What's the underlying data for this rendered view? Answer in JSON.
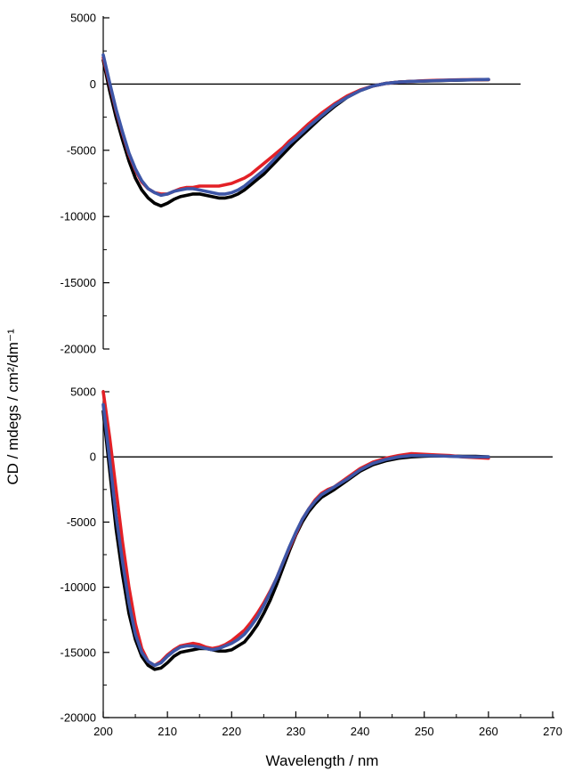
{
  "figure": {
    "ylabel": "CD / mdegs / cm²/dm⁻¹",
    "xlabel": "Wavelength / nm"
  },
  "chart_data": [
    {
      "type": "line",
      "panel": "top",
      "title": "",
      "xlabel": "",
      "ylabel": "",
      "xlim": [
        200,
        270
      ],
      "ylim": [
        -20000,
        5000
      ],
      "yticks": [
        5000,
        0,
        -5000,
        -10000,
        -15000,
        -20000
      ],
      "ytick_labels": [
        "5000",
        "0",
        "-5000",
        "-10000",
        "-15000",
        "-20000"
      ],
      "zero_line": [
        200,
        265
      ],
      "grid": false,
      "series": [
        {
          "color": "#000000",
          "x": [
            200,
            201,
            202,
            203,
            204,
            205,
            206,
            207,
            208,
            209,
            210,
            211,
            212,
            213,
            214,
            215,
            216,
            217,
            218,
            219,
            220,
            221,
            222,
            223,
            224,
            225,
            226,
            227,
            228,
            229,
            230,
            232,
            234,
            236,
            238,
            240,
            242,
            244,
            246,
            248,
            250,
            252,
            254,
            256,
            258,
            260
          ],
          "y": [
            1800,
            -500,
            -2500,
            -4200,
            -5800,
            -7100,
            -8000,
            -8600,
            -9000,
            -9200,
            -9000,
            -8700,
            -8500,
            -8400,
            -8300,
            -8300,
            -8400,
            -8500,
            -8600,
            -8600,
            -8500,
            -8300,
            -8000,
            -7600,
            -7200,
            -6800,
            -6300,
            -5800,
            -5300,
            -4800,
            -4300,
            -3400,
            -2500,
            -1700,
            -1000,
            -500,
            -150,
            50,
            150,
            200,
            220,
            250,
            280,
            300,
            320,
            330
          ]
        },
        {
          "color": "#e32026",
          "x": [
            200,
            201,
            202,
            203,
            204,
            205,
            206,
            207,
            208,
            209,
            210,
            211,
            212,
            213,
            214,
            215,
            216,
            217,
            218,
            219,
            220,
            221,
            222,
            223,
            224,
            225,
            226,
            227,
            228,
            229,
            230,
            232,
            234,
            236,
            238,
            240,
            242,
            244,
            246,
            248,
            250,
            252,
            254,
            256,
            258,
            260
          ],
          "y": [
            2000,
            0,
            -2000,
            -3700,
            -5300,
            -6500,
            -7400,
            -7900,
            -8200,
            -8300,
            -8300,
            -8100,
            -7900,
            -7800,
            -7800,
            -7700,
            -7700,
            -7700,
            -7700,
            -7600,
            -7500,
            -7300,
            -7100,
            -6800,
            -6400,
            -6000,
            -5600,
            -5200,
            -4800,
            -4300,
            -3900,
            -3000,
            -2200,
            -1500,
            -900,
            -450,
            -150,
            50,
            150,
            200,
            250,
            280,
            300,
            320,
            330,
            340
          ]
        },
        {
          "color": "#3e56a7",
          "x": [
            200,
            201,
            202,
            203,
            204,
            205,
            206,
            207,
            208,
            209,
            210,
            211,
            212,
            213,
            214,
            215,
            216,
            217,
            218,
            219,
            220,
            221,
            222,
            223,
            224,
            225,
            226,
            227,
            228,
            229,
            230,
            232,
            234,
            236,
            238,
            240,
            242,
            244,
            246,
            248,
            250,
            252,
            254,
            256,
            258,
            260
          ],
          "y": [
            2200,
            100,
            -1900,
            -3600,
            -5200,
            -6400,
            -7300,
            -7900,
            -8200,
            -8400,
            -8300,
            -8100,
            -8000,
            -7900,
            -7900,
            -8000,
            -8100,
            -8200,
            -8300,
            -8300,
            -8200,
            -8000,
            -7700,
            -7300,
            -6900,
            -6500,
            -6000,
            -5500,
            -5000,
            -4500,
            -4100,
            -3200,
            -2400,
            -1600,
            -1000,
            -500,
            -150,
            50,
            150,
            200,
            230,
            260,
            290,
            310,
            330,
            350
          ]
        }
      ]
    },
    {
      "type": "line",
      "panel": "bottom",
      "title": "",
      "xlabel": "Wavelength / nm",
      "ylabel": "",
      "xlim": [
        200,
        270
      ],
      "ylim": [
        -20000,
        5000
      ],
      "xticks": [
        200,
        210,
        220,
        230,
        240,
        250,
        260,
        270
      ],
      "xtick_labels": [
        "200",
        "210",
        "220",
        "230",
        "240",
        "250",
        "260",
        "270"
      ],
      "yticks": [
        5000,
        0,
        -5000,
        -10000,
        -15000,
        -20000
      ],
      "ytick_labels": [
        "5000",
        "0",
        "-5000",
        "-10000",
        "-15000",
        "-20000"
      ],
      "zero_line": [
        200,
        270
      ],
      "grid": false,
      "series": [
        {
          "color": "#000000",
          "x": [
            200,
            201,
            202,
            203,
            204,
            205,
            206,
            207,
            208,
            209,
            210,
            211,
            212,
            213,
            214,
            215,
            216,
            217,
            218,
            219,
            220,
            221,
            222,
            223,
            224,
            225,
            226,
            227,
            228,
            229,
            230,
            231,
            232,
            233,
            234,
            235,
            236,
            238,
            240,
            242,
            244,
            246,
            248,
            250,
            252,
            254,
            256,
            258,
            260
          ],
          "y": [
            3500,
            -1000,
            -5500,
            -9000,
            -12000,
            -14000,
            -15300,
            -16000,
            -16300,
            -16200,
            -15800,
            -15300,
            -15000,
            -14900,
            -14800,
            -14700,
            -14700,
            -14800,
            -14900,
            -14900,
            -14800,
            -14500,
            -14200,
            -13600,
            -12900,
            -12000,
            -11000,
            -9800,
            -8500,
            -7200,
            -6000,
            -5000,
            -4200,
            -3600,
            -3100,
            -2800,
            -2500,
            -1800,
            -1100,
            -600,
            -300,
            -100,
            0,
            50,
            80,
            60,
            40,
            50,
            0
          ]
        },
        {
          "color": "#e32026",
          "x": [
            200,
            201,
            202,
            203,
            204,
            205,
            206,
            207,
            208,
            209,
            210,
            211,
            212,
            213,
            214,
            215,
            216,
            217,
            218,
            219,
            220,
            221,
            222,
            223,
            224,
            225,
            226,
            227,
            228,
            229,
            230,
            231,
            232,
            233,
            234,
            235,
            236,
            238,
            240,
            242,
            244,
            246,
            248,
            250,
            252,
            254,
            256,
            258,
            260
          ],
          "y": [
            5000,
            1500,
            -2500,
            -6500,
            -10000,
            -12800,
            -14700,
            -15700,
            -16000,
            -15700,
            -15200,
            -14800,
            -14500,
            -14400,
            -14300,
            -14400,
            -14600,
            -14700,
            -14600,
            -14400,
            -14100,
            -13700,
            -13300,
            -12700,
            -12000,
            -11200,
            -10300,
            -9300,
            -8100,
            -7000,
            -5900,
            -4800,
            -4000,
            -3300,
            -2800,
            -2500,
            -2300,
            -1600,
            -900,
            -400,
            -100,
            100,
            250,
            200,
            150,
            100,
            0,
            -50,
            -100
          ]
        },
        {
          "color": "#3e56a7",
          "x": [
            200,
            201,
            202,
            203,
            204,
            205,
            206,
            207,
            208,
            209,
            210,
            211,
            212,
            213,
            214,
            215,
            216,
            217,
            218,
            219,
            220,
            221,
            222,
            223,
            224,
            225,
            226,
            227,
            228,
            229,
            230,
            231,
            232,
            233,
            234,
            235,
            236,
            238,
            240,
            242,
            244,
            246,
            248,
            250,
            252,
            254,
            256,
            258,
            260
          ],
          "y": [
            4000,
            -200,
            -4500,
            -8000,
            -11200,
            -13600,
            -15000,
            -15700,
            -16000,
            -15800,
            -15300,
            -14900,
            -14600,
            -14500,
            -14500,
            -14600,
            -14700,
            -14800,
            -14700,
            -14500,
            -14300,
            -14000,
            -13600,
            -13000,
            -12300,
            -11400,
            -10400,
            -9300,
            -8100,
            -6900,
            -5800,
            -4800,
            -4000,
            -3400,
            -2900,
            -2600,
            -2300,
            -1700,
            -1000,
            -500,
            -200,
            0,
            100,
            100,
            80,
            50,
            20,
            0,
            0
          ]
        }
      ]
    }
  ]
}
